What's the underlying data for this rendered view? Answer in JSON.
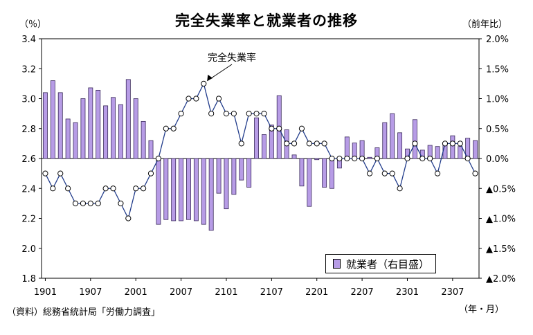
{
  "chart_data": {
    "type": "bar+line",
    "title": "完全失業率と就業者の推移",
    "left_unit": "（％）",
    "right_unit": "（前年比）",
    "x_unit": "（年・月）",
    "source": "（資料）総務省統計局「労働力調査」",
    "line_annotation": "完全失業率",
    "left_axis": {
      "ylim": [
        1.8,
        3.4
      ],
      "ticks": [
        "1.8",
        "2.0",
        "2.2",
        "2.4",
        "2.6",
        "2.8",
        "3.0",
        "3.2",
        "3.4"
      ]
    },
    "right_axis": {
      "ylim": [
        -2.0,
        2.0
      ],
      "ticks": [
        "▲2.0%",
        "▲1.5%",
        "▲1.0%",
        "▲0.5%",
        "0.0%",
        "0.5%",
        "1.0%",
        "1.5%",
        "2.0%"
      ]
    },
    "x_tick_labels": [
      "1901",
      "1907",
      "2001",
      "2007",
      "2101",
      "2107",
      "2201",
      "2207",
      "2301",
      "2307"
    ],
    "x": [
      "1901",
      "1902",
      "1903",
      "1904",
      "1905",
      "1906",
      "1907",
      "1908",
      "1909",
      "1910",
      "1911",
      "1912",
      "2001",
      "2002",
      "2003",
      "2004",
      "2005",
      "2006",
      "2007",
      "2008",
      "2009",
      "2010",
      "2011",
      "2012",
      "2101",
      "2102",
      "2103",
      "2104",
      "2105",
      "2106",
      "2107",
      "2108",
      "2109",
      "2110",
      "2111",
      "2112",
      "2201",
      "2202",
      "2203",
      "2204",
      "2205",
      "2206",
      "2207",
      "2208",
      "2209",
      "2210",
      "2211",
      "2212",
      "2301",
      "2302",
      "2303",
      "2304",
      "2305",
      "2306",
      "2307",
      "2308",
      "2309",
      "2310"
    ],
    "series": [
      {
        "name": "就業者（右目盛）",
        "type": "bar",
        "axis": "right",
        "values": [
          1.1,
          1.3,
          1.1,
          0.66,
          0.6,
          1.0,
          1.18,
          1.14,
          0.88,
          1.02,
          0.9,
          1.32,
          1.0,
          0.62,
          0.3,
          -1.1,
          -1.02,
          -1.04,
          -1.04,
          -1.02,
          -1.04,
          -1.1,
          -1.2,
          -0.58,
          -0.84,
          -0.6,
          -0.36,
          -0.48,
          0.68,
          0.4,
          0.56,
          1.05,
          0.48,
          0.06,
          -0.46,
          -0.8,
          -0.02,
          -0.48,
          -0.5,
          -0.16,
          0.36,
          0.26,
          0.3,
          0.02,
          0.18,
          0.6,
          0.75,
          0.43,
          0.16,
          0.65,
          0.14,
          0.22,
          0.2,
          0.22,
          0.38,
          0.2,
          0.34,
          0.3
        ]
      },
      {
        "name": "完全失業率",
        "type": "line",
        "axis": "left",
        "values": [
          2.5,
          2.4,
          2.5,
          2.4,
          2.3,
          2.3,
          2.3,
          2.3,
          2.4,
          2.4,
          2.3,
          2.2,
          2.4,
          2.4,
          2.5,
          2.6,
          2.8,
          2.8,
          2.9,
          3.0,
          3.0,
          3.1,
          2.9,
          3.0,
          2.9,
          2.9,
          2.7,
          2.9,
          2.9,
          2.9,
          2.8,
          2.8,
          2.7,
          2.7,
          2.8,
          2.7,
          2.7,
          2.7,
          2.6,
          2.6,
          2.6,
          2.6,
          2.6,
          2.5,
          2.6,
          2.5,
          2.5,
          2.4,
          2.6,
          2.7,
          2.6,
          2.6,
          2.5,
          2.7,
          2.7,
          2.7,
          2.6,
          2.5
        ]
      }
    ],
    "legend": "bottom-right",
    "grid": false
  }
}
